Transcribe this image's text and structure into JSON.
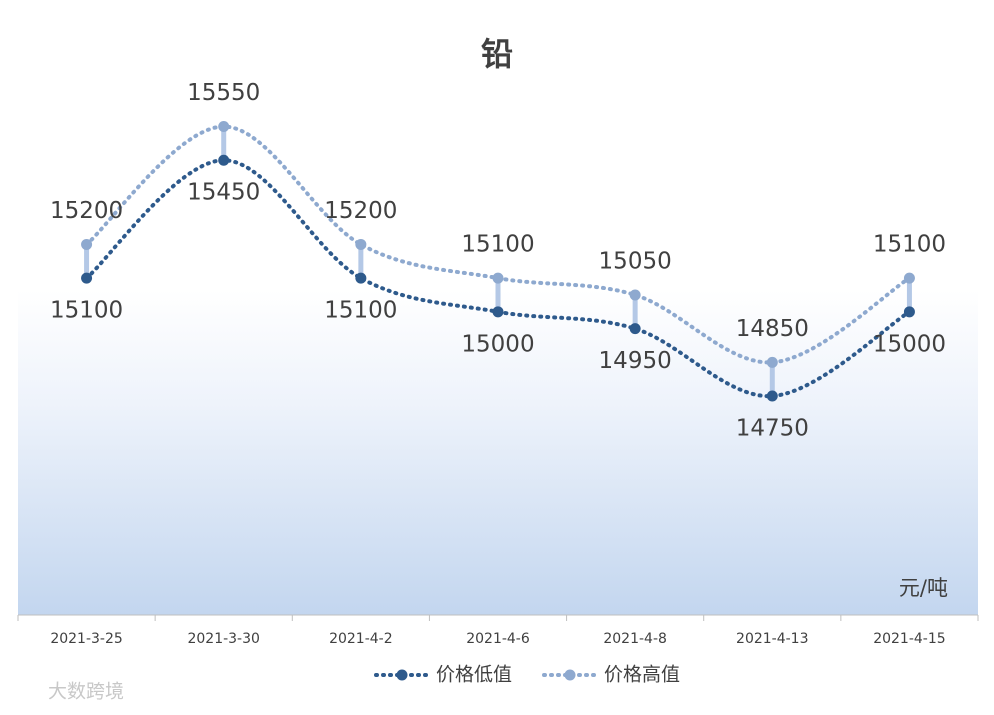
{
  "chart_data": {
    "type": "line",
    "title": "铅",
    "unit_label": "元/吨",
    "watermark": "大数跨境",
    "categories": [
      "2021-3-25",
      "2021-3-30",
      "2021-4-2",
      "2021-4-6",
      "2021-4-8",
      "2021-4-13",
      "2021-4-15"
    ],
    "series": [
      {
        "name": "价格低值",
        "color": "#2e5a8c",
        "values": [
          15100,
          15450,
          15100,
          15000,
          14950,
          14750,
          15000
        ]
      },
      {
        "name": "价格高值",
        "color": "#8ea9cf",
        "values": [
          15200,
          15550,
          15200,
          15100,
          15050,
          14850,
          15100
        ]
      }
    ],
    "ylim": [
      14100,
      15700
    ],
    "legend": "bottom"
  }
}
